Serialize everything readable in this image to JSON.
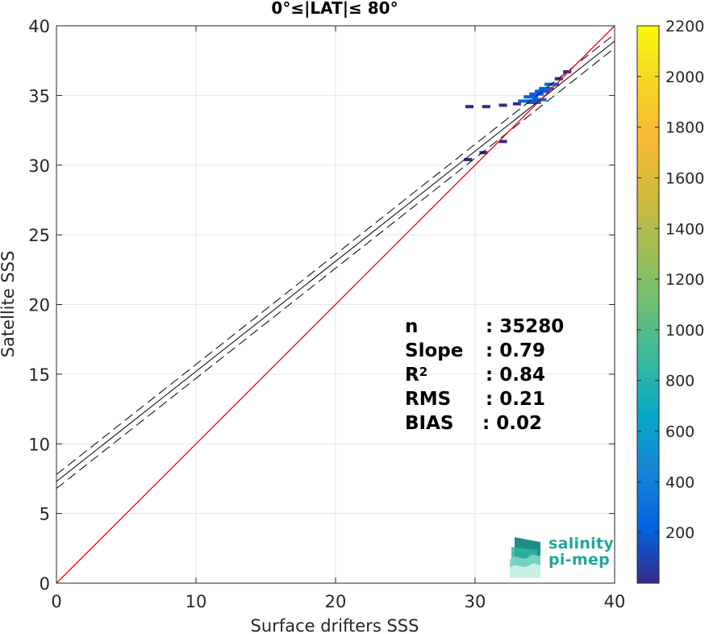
{
  "chart_data": {
    "type": "heatmap",
    "title": "0°≤|LAT|≤ 80°",
    "xlabel": "Surface drifters SSS",
    "ylabel": "Satellite SSS",
    "xlim": [
      0,
      40
    ],
    "ylim": [
      0,
      40
    ],
    "x_ticks": [
      "0",
      "10",
      "20",
      "30",
      "40"
    ],
    "y_ticks": [
      "0",
      "5",
      "10",
      "15",
      "20",
      "25",
      "30",
      "35",
      "40"
    ],
    "grid": true,
    "colorbar": {
      "range": [
        0,
        2200
      ],
      "ticks": [
        "200",
        "400",
        "600",
        "800",
        "1000",
        "1200",
        "1400",
        "1600",
        "1800",
        "2000",
        "2200"
      ],
      "colormap": "parula"
    },
    "identity_line": {
      "x": [
        0,
        40
      ],
      "y": [
        0,
        40
      ],
      "color": "#ff0000"
    },
    "regression_line": {
      "intercept": 7.3,
      "slope": 0.79,
      "band_offset": 0.5,
      "color": "#000000"
    },
    "density_cells": [
      {
        "x": 29.5,
        "y": 30.4,
        "count": 20
      },
      {
        "x": 30.6,
        "y": 30.9,
        "count": 25
      },
      {
        "x": 32.0,
        "y": 31.7,
        "count": 40
      },
      {
        "x": 29.6,
        "y": 34.2,
        "count": 15
      },
      {
        "x": 30.8,
        "y": 34.2,
        "count": 20
      },
      {
        "x": 32.0,
        "y": 34.3,
        "count": 40
      },
      {
        "x": 33.0,
        "y": 34.4,
        "count": 60
      },
      {
        "x": 33.6,
        "y": 34.6,
        "count": 120
      },
      {
        "x": 34.0,
        "y": 34.9,
        "count": 200
      },
      {
        "x": 34.4,
        "y": 35.1,
        "count": 260
      },
      {
        "x": 34.8,
        "y": 35.3,
        "count": 300
      },
      {
        "x": 35.1,
        "y": 35.5,
        "count": 240
      },
      {
        "x": 35.5,
        "y": 35.8,
        "count": 150
      },
      {
        "x": 36.0,
        "y": 36.2,
        "count": 60
      },
      {
        "x": 36.6,
        "y": 36.7,
        "count": 30
      },
      {
        "x": 34.2,
        "y": 34.5,
        "count": 220
      },
      {
        "x": 34.6,
        "y": 34.7,
        "count": 180
      }
    ]
  },
  "stats": {
    "n_label": "n",
    "n_value": ": 35280",
    "slope_label": "Slope",
    "slope_value": ": 0.79",
    "r2_label": "R",
    "r2_sup": "2",
    "r2_value": ": 0.84",
    "rms_label": "RMS",
    "rms_value": ": 0.21",
    "bias_label": "BIAS",
    "bias_value": ": 0.02"
  },
  "logo": {
    "line1": "salinity",
    "line2": "pi-mep",
    "color": "#1fa79c"
  }
}
